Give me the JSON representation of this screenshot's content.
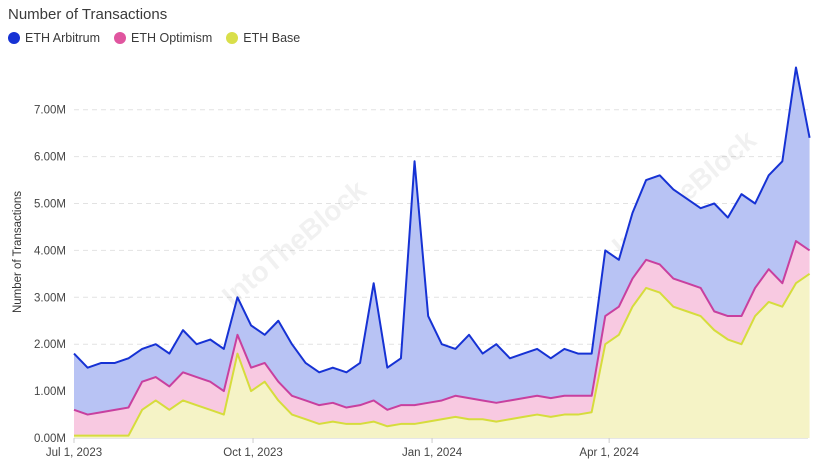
{
  "chart_data": {
    "type": "area",
    "stacked": true,
    "title": "Number of Transactions",
    "xlabel": "",
    "ylabel": "Number of Transactions",
    "ylim": [
      0,
      8.0
    ],
    "yunit": "M",
    "grid": true,
    "legend_placement": "top-left",
    "watermark": "IntoTheBlock",
    "yticks": [
      "0.00M",
      "1.00M",
      "2.00M",
      "3.00M",
      "4.00M",
      "5.00M",
      "6.00M",
      "7.00M"
    ],
    "xticks": [
      {
        "date": "2023-07-01",
        "label": "Jul 1, 2023"
      },
      {
        "date": "2023-10-01",
        "label": "Oct 1, 2023"
      },
      {
        "date": "2024-01-01",
        "label": "Jan 1, 2024"
      },
      {
        "date": "2024-04-01",
        "label": "Apr 1, 2024"
      }
    ],
    "x": [
      "2023-07-01",
      "2023-07-08",
      "2023-07-15",
      "2023-07-22",
      "2023-07-29",
      "2023-08-05",
      "2023-08-12",
      "2023-08-19",
      "2023-08-26",
      "2023-09-02",
      "2023-09-09",
      "2023-09-16",
      "2023-09-23",
      "2023-09-30",
      "2023-10-07",
      "2023-10-14",
      "2023-10-21",
      "2023-10-28",
      "2023-11-04",
      "2023-11-11",
      "2023-11-18",
      "2023-11-25",
      "2023-12-02",
      "2023-12-09",
      "2023-12-16",
      "2023-12-23",
      "2023-12-30",
      "2024-01-06",
      "2024-01-13",
      "2024-01-20",
      "2024-01-27",
      "2024-02-03",
      "2024-02-10",
      "2024-02-17",
      "2024-02-24",
      "2024-03-02",
      "2024-03-09",
      "2024-03-16",
      "2024-03-23",
      "2024-03-30",
      "2024-04-06",
      "2024-04-13",
      "2024-04-20",
      "2024-04-27",
      "2024-05-04",
      "2024-05-11",
      "2024-05-18",
      "2024-05-25",
      "2024-06-01",
      "2024-06-08",
      "2024-06-15",
      "2024-06-22",
      "2024-06-29",
      "2024-07-06",
      "2024-07-13"
    ],
    "series": [
      {
        "name": "ETH Base",
        "color": "#d6dc3c",
        "fill": "#f5f3c6",
        "values": [
          0.05,
          0.05,
          0.05,
          0.05,
          0.05,
          0.6,
          0.8,
          0.6,
          0.8,
          0.7,
          0.6,
          0.5,
          1.8,
          1.0,
          1.2,
          0.8,
          0.5,
          0.4,
          0.3,
          0.35,
          0.3,
          0.3,
          0.35,
          0.25,
          0.3,
          0.3,
          0.35,
          0.4,
          0.45,
          0.4,
          0.4,
          0.35,
          0.4,
          0.45,
          0.5,
          0.45,
          0.5,
          0.5,
          0.55,
          2.0,
          2.2,
          2.8,
          3.2,
          3.1,
          2.8,
          2.7,
          2.6,
          2.3,
          2.1,
          2.0,
          2.6,
          2.9,
          2.8,
          3.3,
          3.5
        ]
      },
      {
        "name": "ETH Optimism",
        "color": "#c8409f",
        "fill": "#f8c9e1",
        "values": [
          0.55,
          0.45,
          0.5,
          0.55,
          0.6,
          0.6,
          0.5,
          0.5,
          0.6,
          0.6,
          0.6,
          0.5,
          0.4,
          0.5,
          0.4,
          0.4,
          0.4,
          0.4,
          0.4,
          0.4,
          0.35,
          0.4,
          0.45,
          0.35,
          0.4,
          0.4,
          0.4,
          0.4,
          0.45,
          0.45,
          0.4,
          0.4,
          0.4,
          0.4,
          0.4,
          0.4,
          0.4,
          0.4,
          0.35,
          0.6,
          0.6,
          0.6,
          0.6,
          0.6,
          0.6,
          0.6,
          0.6,
          0.4,
          0.5,
          0.6,
          0.6,
          0.7,
          0.5,
          0.9,
          0.5
        ]
      },
      {
        "name": "ETH Arbitrum",
        "color": "#1632d4",
        "fill": "#b8c3f4",
        "values": [
          1.2,
          1.0,
          1.05,
          1.0,
          1.05,
          0.7,
          0.7,
          0.7,
          0.9,
          0.7,
          0.9,
          0.9,
          0.8,
          0.9,
          0.6,
          1.3,
          1.1,
          0.8,
          0.7,
          0.75,
          0.75,
          0.9,
          2.5,
          0.9,
          1.0,
          5.2,
          1.85,
          1.2,
          1.0,
          1.35,
          1.0,
          1.25,
          0.9,
          0.95,
          1.0,
          0.85,
          1.0,
          0.9,
          0.9,
          1.4,
          1.0,
          1.4,
          1.7,
          1.9,
          1.9,
          1.8,
          1.7,
          2.3,
          2.1,
          2.6,
          1.8,
          2.0,
          2.6,
          3.7,
          2.4
        ]
      }
    ]
  },
  "legend": [
    {
      "label": "ETH Arbitrum",
      "color": "#1632d4"
    },
    {
      "label": "ETH Optimism",
      "color": "#e0559f"
    },
    {
      "label": "ETH Base",
      "color": "#d9df4a"
    }
  ]
}
